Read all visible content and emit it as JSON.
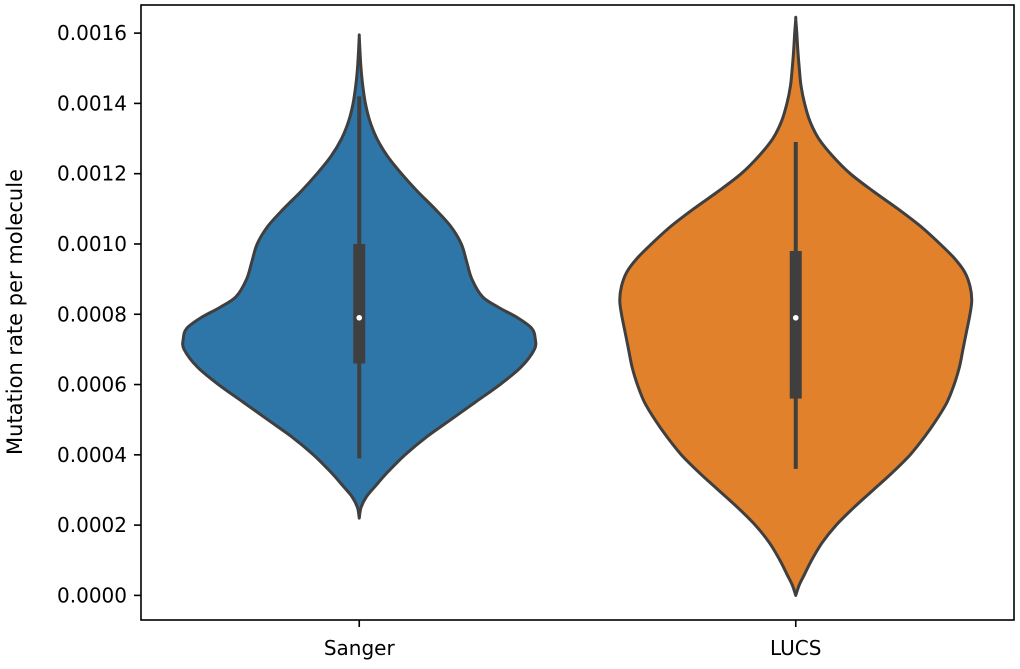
{
  "chart_data": {
    "type": "violin",
    "ylabel": "Mutation rate per molecule",
    "xlabel": "",
    "title": "",
    "categories": [
      "Sanger",
      "LUCS"
    ],
    "ylim": [
      -7e-05,
      0.00168
    ],
    "yticks": [
      0.0,
      0.0002,
      0.0004,
      0.0006,
      0.0008,
      0.001,
      0.0012,
      0.0014,
      0.0016
    ],
    "ytick_labels": [
      "0.0000",
      "0.0002",
      "0.0004",
      "0.0006",
      "0.0008",
      "0.0010",
      "0.0012",
      "0.0014",
      "0.0016"
    ],
    "grid": false,
    "colors": {
      "Sanger": "#2e75a8",
      "LUCS": "#e1812c",
      "outline": "#3f3f3f",
      "box": "#3f3f3f",
      "median": "#ffffff"
    },
    "series": [
      {
        "category": "Sanger",
        "min": 0.00022,
        "max": 0.00159,
        "whisker_low": 0.00039,
        "q1": 0.00066,
        "median": 0.00079,
        "q3": 0.001,
        "whisker_high": 0.00142,
        "density_profile": [
          [
            0.00022,
            0.0
          ],
          [
            0.00025,
            0.01
          ],
          [
            0.00028,
            0.04
          ],
          [
            0.00031,
            0.09
          ],
          [
            0.00035,
            0.16
          ],
          [
            0.0004,
            0.26
          ],
          [
            0.00045,
            0.38
          ],
          [
            0.0005,
            0.52
          ],
          [
            0.00055,
            0.66
          ],
          [
            0.0006,
            0.8
          ],
          [
            0.00065,
            0.92
          ],
          [
            0.0007,
            0.995
          ],
          [
            0.00073,
            1.0
          ],
          [
            0.00076,
            0.98
          ],
          [
            0.00079,
            0.9
          ],
          [
            0.00082,
            0.79
          ],
          [
            0.00085,
            0.7
          ],
          [
            0.0009,
            0.64
          ],
          [
            0.00095,
            0.61
          ],
          [
            0.001,
            0.58
          ],
          [
            0.00105,
            0.52
          ],
          [
            0.0011,
            0.43
          ],
          [
            0.00115,
            0.33
          ],
          [
            0.0012,
            0.24
          ],
          [
            0.00125,
            0.16
          ],
          [
            0.0013,
            0.1
          ],
          [
            0.00135,
            0.06
          ],
          [
            0.0014,
            0.035
          ],
          [
            0.00145,
            0.02
          ],
          [
            0.0015,
            0.01
          ],
          [
            0.00155,
            0.004
          ],
          [
            0.00159,
            0.0
          ]
        ]
      },
      {
        "category": "LUCS",
        "min": 0.0,
        "max": 0.00164,
        "whisker_low": 0.00036,
        "q1": 0.00056,
        "median": 0.00079,
        "q3": 0.00098,
        "whisker_high": 0.00129,
        "density_profile": [
          [
            0.0,
            0.0
          ],
          [
            3e-05,
            0.02
          ],
          [
            6e-05,
            0.05
          ],
          [
            0.0001,
            0.09
          ],
          [
            0.00015,
            0.15
          ],
          [
            0.0002,
            0.23
          ],
          [
            0.00025,
            0.33
          ],
          [
            0.0003,
            0.44
          ],
          [
            0.00035,
            0.55
          ],
          [
            0.0004,
            0.65
          ],
          [
            0.00045,
            0.73
          ],
          [
            0.0005,
            0.8
          ],
          [
            0.00055,
            0.86
          ],
          [
            0.0006,
            0.9
          ],
          [
            0.00065,
            0.93
          ],
          [
            0.0007,
            0.95
          ],
          [
            0.00075,
            0.97
          ],
          [
            0.0008,
            0.99
          ],
          [
            0.00084,
            1.0
          ],
          [
            0.00088,
            0.99
          ],
          [
            0.00092,
            0.96
          ],
          [
            0.00096,
            0.9
          ],
          [
            0.001,
            0.82
          ],
          [
            0.00105,
            0.71
          ],
          [
            0.0011,
            0.58
          ],
          [
            0.00115,
            0.44
          ],
          [
            0.0012,
            0.31
          ],
          [
            0.00125,
            0.21
          ],
          [
            0.0013,
            0.13
          ],
          [
            0.00135,
            0.08
          ],
          [
            0.0014,
            0.05
          ],
          [
            0.00145,
            0.03
          ],
          [
            0.0015,
            0.02
          ],
          [
            0.00155,
            0.012
          ],
          [
            0.0016,
            0.006
          ],
          [
            0.00164,
            0.0
          ]
        ]
      }
    ]
  }
}
